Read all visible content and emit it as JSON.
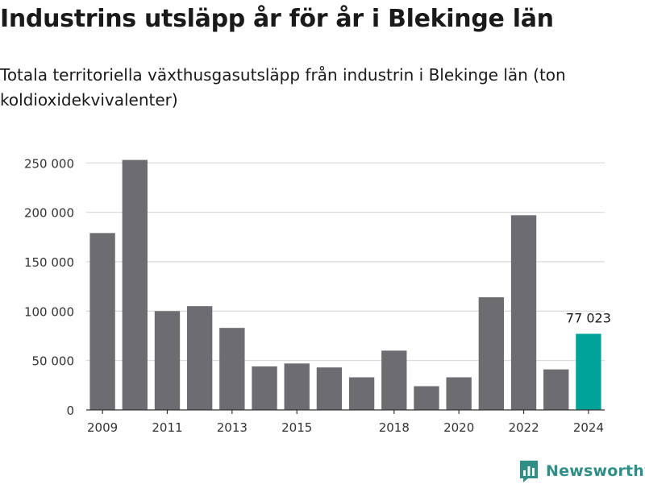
{
  "chart_data": {
    "type": "bar",
    "title": "Industrins utsläpp år för år i Blekinge län",
    "subtitle": "Totala territoriella växthusgasutsläpp från industrin i Blekinge län (ton koldioxidekvivalenter)",
    "categories": [
      "2009",
      "2010",
      "2011",
      "2012",
      "2013",
      "2014",
      "2015",
      "2016",
      "2017",
      "2018",
      "2019",
      "2020",
      "2021",
      "2022",
      "2023",
      "2024"
    ],
    "values": [
      179000,
      253000,
      100000,
      105000,
      83000,
      44000,
      47000,
      43000,
      33000,
      60000,
      24000,
      33000,
      114000,
      197000,
      41000,
      77023
    ],
    "x_tick_labels": [
      "2009",
      "2011",
      "2013",
      "2015",
      "2018",
      "2020",
      "2022",
      "2024"
    ],
    "y_ticks": [
      0,
      50000,
      100000,
      150000,
      200000,
      250000
    ],
    "y_tick_labels": [
      "0",
      "50 000",
      "100 000",
      "150 000",
      "200 000",
      "250 000"
    ],
    "ylim": [
      0,
      260000
    ],
    "highlight_category": "2024",
    "highlight_label": "77 023",
    "grid": true,
    "xlabel": "",
    "ylabel": "",
    "colors": {
      "bar": "#6d6c71",
      "highlight": "#00a39a",
      "grid": "#dcdcdc",
      "axis": "#333333",
      "tick_text": "#333333"
    }
  },
  "brand": {
    "name": "Newsworthy",
    "color": "#2f8f86",
    "icon": "bar-chart-logo-icon"
  }
}
